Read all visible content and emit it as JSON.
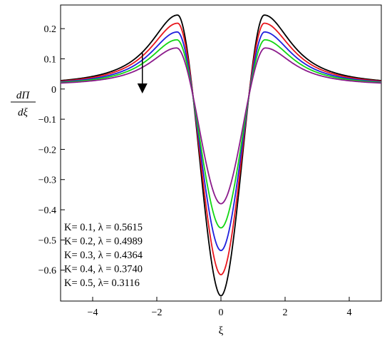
{
  "chart_data": {
    "type": "line",
    "xlabel": "ξ",
    "ylabel_num": "dΠ",
    "ylabel_den": "dξ",
    "xlim": [
      -5,
      5
    ],
    "ylim": [
      -0.7,
      0.25
    ],
    "x_ticks": [
      -4,
      -2,
      0,
      2,
      4
    ],
    "x_tick_labels": [
      "−4",
      "−2",
      "0",
      "2",
      "4"
    ],
    "y_ticks": [
      0.2,
      0.1,
      0,
      -0.1,
      -0.2,
      -0.3,
      -0.4,
      -0.5,
      -0.6
    ],
    "y_tick_labels": [
      "0.2",
      "0.1",
      "0",
      "−0.1",
      "−0.2",
      "−0.3",
      "−0.4",
      "−0.5",
      "−0.6"
    ],
    "series": [
      {
        "color": "#000000",
        "peak_x": 1.35,
        "peak": 0.245,
        "min": -0.685,
        "far": 0.01
      },
      {
        "color": "#e8161c",
        "peak_x": 1.35,
        "peak": 0.218,
        "min": -0.615,
        "far": 0.01
      },
      {
        "color": "#1f1fdd",
        "peak_x": 1.36,
        "peak": 0.189,
        "min": -0.535,
        "far": 0.01
      },
      {
        "color": "#12d612",
        "peak_x": 1.37,
        "peak": 0.163,
        "min": -0.46,
        "far": 0.01
      },
      {
        "color": "#8b1a8b",
        "peak_x": 1.38,
        "peak": 0.136,
        "min": -0.38,
        "far": 0.01
      }
    ],
    "legend": [
      "K=  0.1,  λ = 0.5615",
      "K=  0.2,  λ = 0.4989",
      "K=  0.3,  λ =  0.4364",
      "K=  0.4,  λ = 0.3740",
      "K=  0.5,  λ=  0.3116"
    ],
    "legend_position": "bottom-left",
    "arrow": {
      "x": -2.45,
      "y_from": 0.12,
      "y_to": -0.01,
      "meaning": "decreasing with increasing K"
    }
  }
}
